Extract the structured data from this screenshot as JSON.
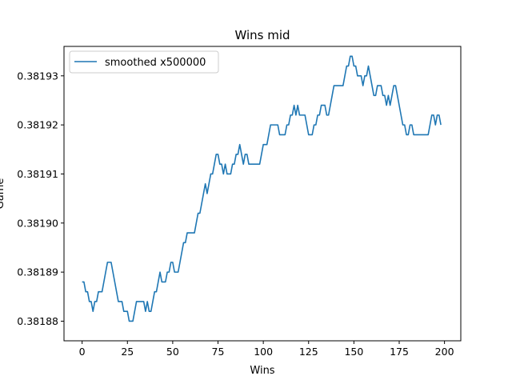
{
  "chart_data": {
    "type": "line",
    "title": "Wins mid",
    "xlabel": "Wins",
    "ylabel": "Game",
    "xlim": [
      -10,
      209
    ],
    "ylim": [
      0.381876,
      0.381936
    ],
    "xticks": [
      0,
      25,
      50,
      75,
      100,
      125,
      150,
      175,
      200
    ],
    "xtick_labels": [
      "0",
      "25",
      "50",
      "75",
      "100",
      "125",
      "150",
      "175",
      "200"
    ],
    "yticks": [
      0.38188,
      0.38189,
      0.3819,
      0.38191,
      0.38192,
      0.38193
    ],
    "ytick_labels": [
      "0.38188",
      "0.38189",
      "0.38190",
      "0.38191",
      "0.38192",
      "0.38193"
    ],
    "grid": false,
    "legend": {
      "placement": "upper-left"
    },
    "colors": {
      "line": "#1f77b4",
      "axes": "#000000",
      "background": "#ffffff"
    },
    "series": [
      {
        "name": "smoothed x500000",
        "x": [
          0,
          1,
          2,
          3,
          4,
          5,
          6,
          7,
          8,
          9,
          10,
          11,
          12,
          13,
          14,
          15,
          16,
          17,
          18,
          19,
          20,
          21,
          22,
          23,
          24,
          25,
          26,
          27,
          28,
          29,
          30,
          31,
          32,
          33,
          34,
          35,
          36,
          37,
          38,
          39,
          40,
          41,
          42,
          43,
          44,
          45,
          46,
          47,
          48,
          49,
          50,
          51,
          52,
          53,
          54,
          55,
          56,
          57,
          58,
          59,
          60,
          61,
          62,
          63,
          64,
          65,
          66,
          67,
          68,
          69,
          70,
          71,
          72,
          73,
          74,
          75,
          76,
          77,
          78,
          79,
          80,
          81,
          82,
          83,
          84,
          85,
          86,
          87,
          88,
          89,
          90,
          91,
          92,
          93,
          94,
          95,
          96,
          97,
          98,
          99,
          100,
          101,
          102,
          103,
          104,
          105,
          106,
          107,
          108,
          109,
          110,
          111,
          112,
          113,
          114,
          115,
          116,
          117,
          118,
          119,
          120,
          121,
          122,
          123,
          124,
          125,
          126,
          127,
          128,
          129,
          130,
          131,
          132,
          133,
          134,
          135,
          136,
          137,
          138,
          139,
          140,
          141,
          142,
          143,
          144,
          145,
          146,
          147,
          148,
          149,
          150,
          151,
          152,
          153,
          154,
          155,
          156,
          157,
          158,
          159,
          160,
          161,
          162,
          163,
          164,
          165,
          166,
          167,
          168,
          169,
          170,
          171,
          172,
          173,
          174,
          175,
          176,
          177,
          178,
          179,
          180,
          181,
          182,
          183,
          184,
          185,
          186,
          187,
          188,
          189,
          190,
          191,
          192,
          193,
          194,
          195,
          196,
          197,
          198
        ],
        "y": [
          0.381888,
          0.381888,
          0.381886,
          0.381886,
          0.381884,
          0.381884,
          0.381882,
          0.381884,
          0.381884,
          0.381886,
          0.381886,
          0.381886,
          0.381888,
          0.38189,
          0.381892,
          0.381892,
          0.381892,
          0.38189,
          0.381888,
          0.381886,
          0.381884,
          0.381884,
          0.381884,
          0.381882,
          0.381882,
          0.381882,
          0.38188,
          0.38188,
          0.38188,
          0.381882,
          0.381884,
          0.381884,
          0.381884,
          0.381884,
          0.381884,
          0.381882,
          0.381884,
          0.381882,
          0.381882,
          0.381884,
          0.381886,
          0.381886,
          0.381888,
          0.38189,
          0.381888,
          0.381888,
          0.381888,
          0.38189,
          0.38189,
          0.381892,
          0.381892,
          0.38189,
          0.38189,
          0.38189,
          0.381892,
          0.381894,
          0.381896,
          0.381896,
          0.381898,
          0.381898,
          0.381898,
          0.381898,
          0.381898,
          0.3819,
          0.381902,
          0.381902,
          0.381904,
          0.381906,
          0.381908,
          0.381906,
          0.381908,
          0.38191,
          0.38191,
          0.381912,
          0.381914,
          0.381914,
          0.381912,
          0.381912,
          0.38191,
          0.381912,
          0.38191,
          0.38191,
          0.38191,
          0.381912,
          0.381912,
          0.381914,
          0.381914,
          0.381916,
          0.381914,
          0.381912,
          0.381914,
          0.381914,
          0.381912,
          0.381912,
          0.381912,
          0.381912,
          0.381912,
          0.381912,
          0.381912,
          0.381914,
          0.381916,
          0.381916,
          0.381916,
          0.381918,
          0.38192,
          0.38192,
          0.38192,
          0.38192,
          0.38192,
          0.381918,
          0.381918,
          0.381918,
          0.381918,
          0.38192,
          0.38192,
          0.381922,
          0.381922,
          0.381924,
          0.381922,
          0.381924,
          0.381922,
          0.381922,
          0.381922,
          0.381922,
          0.38192,
          0.381918,
          0.381918,
          0.381918,
          0.38192,
          0.38192,
          0.381922,
          0.381922,
          0.381924,
          0.381924,
          0.381924,
          0.381922,
          0.381922,
          0.381924,
          0.381926,
          0.381928,
          0.381928,
          0.381928,
          0.381928,
          0.381928,
          0.381928,
          0.38193,
          0.381932,
          0.381932,
          0.381934,
          0.381934,
          0.381932,
          0.381932,
          0.38193,
          0.38193,
          0.38193,
          0.381928,
          0.38193,
          0.38193,
          0.381932,
          0.38193,
          0.381928,
          0.381926,
          0.381926,
          0.381928,
          0.381928,
          0.381928,
          0.381926,
          0.381926,
          0.381924,
          0.381926,
          0.381924,
          0.381926,
          0.381928,
          0.381928,
          0.381926,
          0.381924,
          0.381922,
          0.38192,
          0.38192,
          0.381918,
          0.381918,
          0.38192,
          0.38192,
          0.381918,
          0.381918,
          0.381918,
          0.381918,
          0.381918,
          0.381918,
          0.381918,
          0.381918,
          0.381918,
          0.38192,
          0.381922,
          0.381922,
          0.38192,
          0.381922,
          0.381922,
          0.38192
        ]
      }
    ]
  }
}
